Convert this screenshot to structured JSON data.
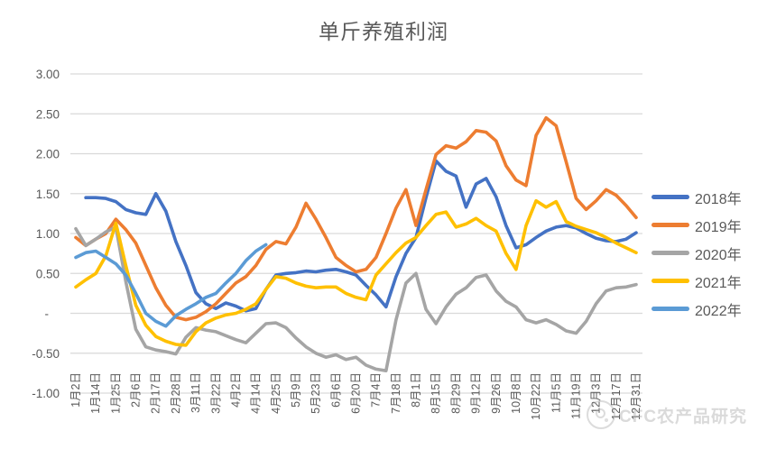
{
  "title": "单斤养殖利润",
  "watermark": {
    "text": "CFC农产品研究"
  },
  "colors": {
    "grid": "#D9D9D9",
    "axis_text": "#595959",
    "title_text": "#595959"
  },
  "chart_data": {
    "type": "line",
    "title": "单斤养殖利润",
    "xlabel": "",
    "ylabel": "",
    "ylim": [
      -1.0,
      3.0
    ],
    "y_tick_step": 0.5,
    "y_tick_labels": [
      "3.00",
      "2.50",
      "2.00",
      "1.50",
      "1.00",
      "0.50",
      "-",
      "-0.50",
      "-1.00"
    ],
    "grid": "horizontal",
    "legend_position": "right",
    "categories": [
      "1月2日",
      "1月14日",
      "1月25日",
      "2月6日",
      "2月17日",
      "2月28日",
      "3月11日",
      "3月22日",
      "4月2日",
      "4月14日",
      "4月25日",
      "5月9日",
      "5月23日",
      "6月6日",
      "6月20日",
      "7月4日",
      "7月18日",
      "8月1日",
      "8月15日",
      "8月29日",
      "9月12日",
      "9月26日",
      "10月8日",
      "10月22日",
      "11月5日",
      "11月19日",
      "12月3日",
      "12月17日",
      "12月31日"
    ],
    "sampling_note": "series values are sampled at 2 points per category interval; even indices (0,2,4,...) align with the category labels",
    "series": [
      {
        "name": "2018年",
        "color": "#4472C4",
        "values": [
          null,
          1.45,
          1.45,
          1.44,
          1.4,
          1.3,
          1.26,
          1.24,
          1.5,
          1.28,
          0.9,
          0.6,
          0.26,
          0.12,
          0.06,
          0.13,
          0.09,
          0.03,
          0.06,
          0.3,
          0.48,
          0.5,
          0.51,
          0.53,
          0.52,
          0.54,
          0.55,
          0.52,
          0.48,
          0.35,
          0.23,
          0.08,
          0.46,
          0.75,
          0.95,
          1.45,
          1.91,
          1.78,
          1.72,
          1.33,
          1.62,
          1.69,
          1.46,
          1.1,
          0.82,
          0.86,
          0.95,
          1.03,
          1.08,
          1.1,
          1.07,
          1.0,
          0.94,
          0.91,
          0.9,
          0.93,
          1.01
        ]
      },
      {
        "name": "2019年",
        "color": "#ED7D31",
        "values": [
          0.95,
          0.85,
          0.93,
          1.0,
          1.18,
          1.05,
          0.88,
          0.6,
          0.32,
          0.1,
          -0.05,
          -0.08,
          -0.05,
          0.02,
          0.12,
          0.25,
          0.38,
          0.46,
          0.6,
          0.8,
          0.9,
          0.87,
          1.08,
          1.38,
          1.18,
          0.95,
          0.7,
          0.6,
          0.52,
          0.55,
          0.7,
          1.0,
          1.32,
          1.55,
          1.1,
          1.55,
          1.99,
          2.1,
          2.07,
          2.15,
          2.29,
          2.27,
          2.16,
          1.85,
          1.67,
          1.6,
          2.23,
          2.45,
          2.35,
          1.9,
          1.44,
          1.3,
          1.41,
          1.55,
          1.48,
          1.35,
          1.2
        ]
      },
      {
        "name": "2020年",
        "color": "#A5A5A5",
        "values": [
          1.06,
          0.85,
          0.93,
          1.02,
          1.08,
          0.4,
          -0.2,
          -0.42,
          -0.46,
          -0.48,
          -0.51,
          -0.3,
          -0.18,
          -0.21,
          -0.23,
          -0.28,
          -0.33,
          -0.37,
          -0.25,
          -0.13,
          -0.12,
          -0.18,
          -0.31,
          -0.42,
          -0.5,
          -0.55,
          -0.52,
          -0.58,
          -0.55,
          -0.65,
          -0.7,
          -0.72,
          -0.08,
          0.38,
          0.5,
          0.05,
          -0.13,
          0.08,
          0.24,
          0.32,
          0.45,
          0.48,
          0.28,
          0.15,
          0.08,
          -0.08,
          -0.12,
          -0.08,
          -0.14,
          -0.22,
          -0.25,
          -0.1,
          0.12,
          0.28,
          0.32,
          0.33,
          0.36
        ]
      },
      {
        "name": "2021年",
        "color": "#FFC000",
        "values": [
          0.33,
          0.42,
          0.5,
          0.72,
          1.13,
          0.6,
          0.1,
          -0.15,
          -0.29,
          -0.35,
          -0.39,
          -0.4,
          -0.23,
          -0.12,
          -0.06,
          -0.02,
          0.0,
          0.05,
          0.12,
          0.3,
          0.46,
          0.44,
          0.38,
          0.34,
          0.32,
          0.33,
          0.33,
          0.25,
          0.2,
          0.17,
          0.48,
          0.62,
          0.76,
          0.88,
          0.95,
          1.1,
          1.24,
          1.27,
          1.08,
          1.12,
          1.19,
          1.1,
          1.03,
          0.75,
          0.55,
          1.1,
          1.41,
          1.33,
          1.4,
          1.15,
          1.09,
          1.05,
          1.01,
          0.95,
          0.88,
          0.82,
          0.76
        ]
      },
      {
        "name": "2022年",
        "color": "#5B9BD5",
        "values": [
          0.7,
          0.76,
          0.78,
          0.7,
          0.62,
          0.48,
          0.25,
          0.0,
          -0.1,
          -0.16,
          -0.03,
          0.05,
          0.12,
          0.2,
          0.25,
          0.38,
          0.5,
          0.66,
          0.78,
          0.86
        ]
      }
    ]
  }
}
